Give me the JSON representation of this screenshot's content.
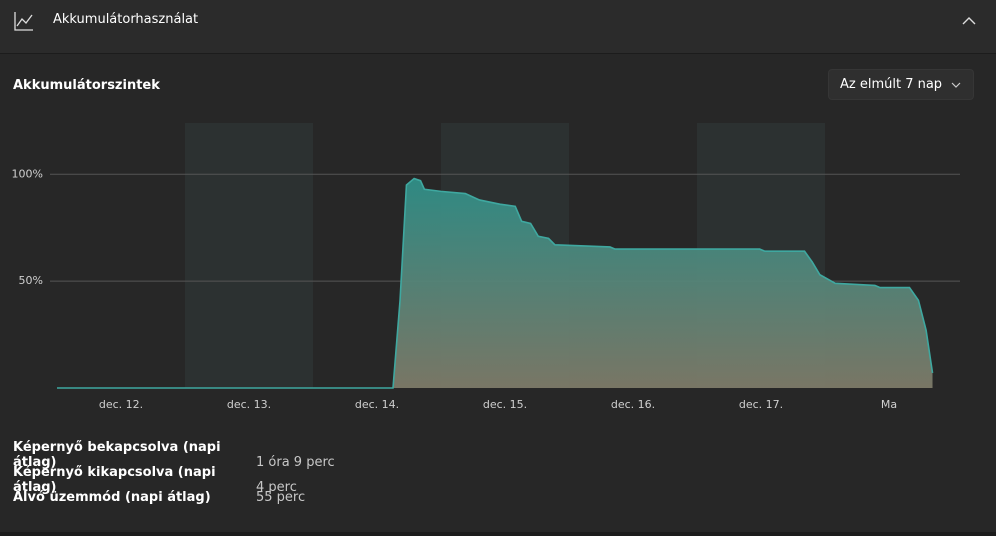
{
  "header": {
    "title": "Akkumulátorhasználat"
  },
  "section": {
    "title": "Akkumulátorszintek",
    "dropdown": "Az elmúlt 7 nap"
  },
  "chart_data": {
    "type": "area",
    "x": [
      0,
      2.625,
      2.68,
      2.73,
      2.79,
      2.84,
      2.87,
      3.0,
      3.19,
      3.3,
      3.46,
      3.58,
      3.63,
      3.7,
      3.76,
      3.84,
      3.89,
      4.32,
      4.36,
      5.49,
      5.53,
      5.84,
      5.9,
      5.96,
      6.08,
      6.39,
      6.43,
      6.66,
      6.73,
      6.79,
      6.84
    ],
    "series": [
      {
        "color": "#3fa8a0",
        "values": [
          0,
          0,
          41,
          95,
          98,
          97,
          93,
          92,
          91,
          88,
          86,
          85,
          78,
          77,
          71,
          70,
          67,
          66,
          65,
          65,
          64,
          64,
          59,
          53,
          49,
          48,
          47,
          47,
          41,
          27,
          7
        ]
      }
    ],
    "xlim": [
      0,
      7
    ],
    "xticks": [
      {
        "value": 0.5,
        "label": "dec. 12."
      },
      {
        "value": 1.5,
        "label": "dec. 13."
      },
      {
        "value": 2.5,
        "label": "dec. 14."
      },
      {
        "value": 3.5,
        "label": "dec. 15."
      },
      {
        "value": 4.5,
        "label": "dec. 16."
      },
      {
        "value": 5.5,
        "label": "dec. 17."
      },
      {
        "value": 6.5,
        "label": "Ma"
      }
    ],
    "ylim": [
      0,
      124
    ],
    "yticks": [
      {
        "value": 50,
        "label": "50%"
      },
      {
        "value": 100,
        "label": "100%"
      }
    ],
    "grid": true
  },
  "stats": [
    {
      "label": "Képernyő bekapcsolva (napi átlag)",
      "value": "1 óra 9 perc"
    },
    {
      "label": "Képernyő kikapcsolva (napi átlag)",
      "value": "4 perc"
    },
    {
      "label": "Alvó üzemmód (napi átlag)",
      "value": "55 perc"
    }
  ]
}
